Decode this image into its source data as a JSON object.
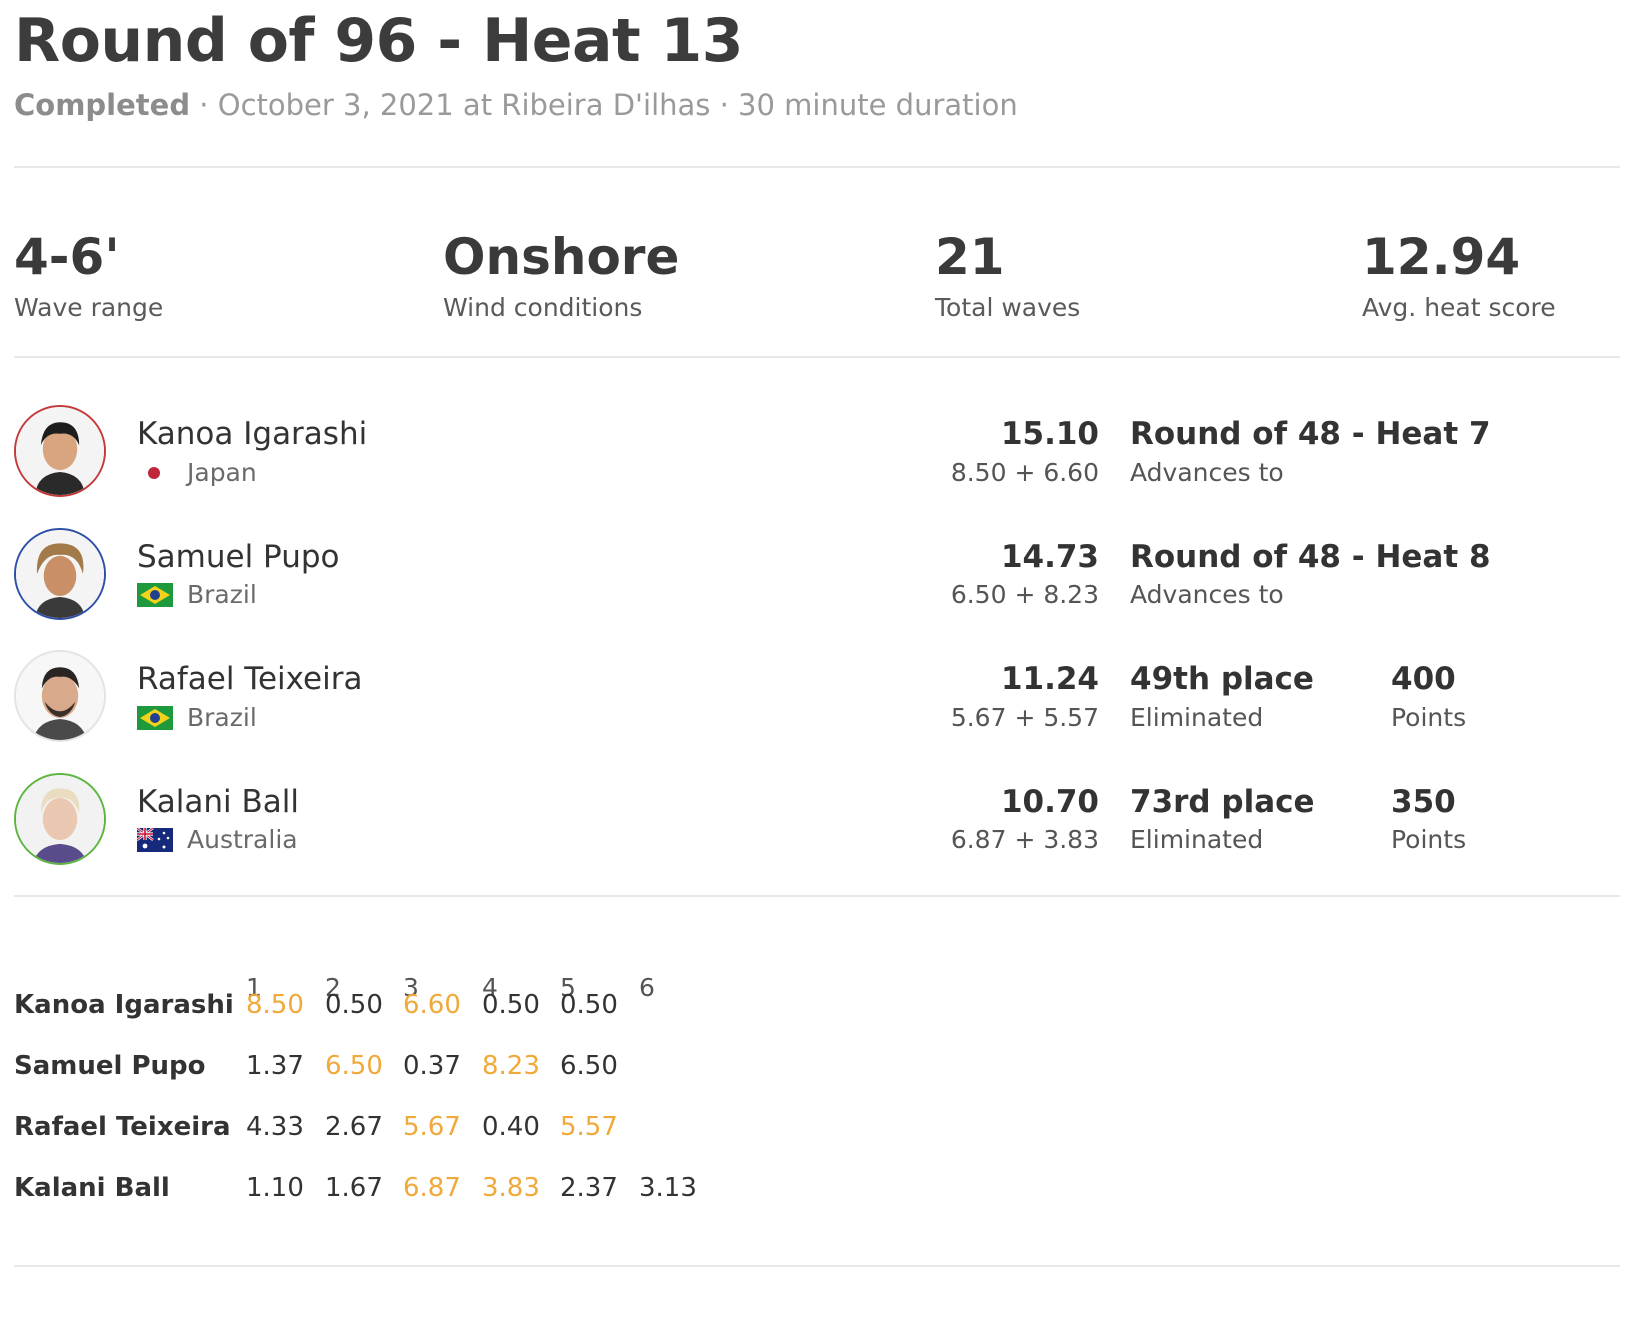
{
  "header": {
    "title": "Round of 96 - Heat 13",
    "status": "Completed",
    "details": " · October 3, 2021 at Ribeira D'ilhas · 30 minute duration"
  },
  "stats": [
    {
      "value": "4-6'",
      "label": "Wave range"
    },
    {
      "value": "Onshore",
      "label": "Wind conditions"
    },
    {
      "value": "21",
      "label": "Total waves"
    },
    {
      "value": "12.94",
      "label": "Avg. heat score"
    }
  ],
  "surfers": [
    {
      "name": "Kanoa Igarashi",
      "country": "Japan",
      "flag_icon": "japan-flag-icon",
      "ring_color": "#c43a3a",
      "total": "15.10",
      "waves": "8.50 + 6.60",
      "result": "Round of 48 - Heat 7",
      "result_sub": "Advances to",
      "points": "",
      "points_label": ""
    },
    {
      "name": "Samuel Pupo",
      "country": "Brazil",
      "flag_icon": "brazil-flag-icon",
      "ring_color": "#2d4fa8",
      "total": "14.73",
      "waves": "6.50 + 8.23",
      "result": "Round of 48 - Heat 8",
      "result_sub": "Advances to",
      "points": "",
      "points_label": ""
    },
    {
      "name": "Rafael Teixeira",
      "country": "Brazil",
      "flag_icon": "brazil-flag-icon",
      "ring_color": "#e4e4e4",
      "total": "11.24",
      "waves": "5.67 + 5.57",
      "result": "49th place",
      "result_sub": "Eliminated",
      "points": "400",
      "points_label": "Points"
    },
    {
      "name": "Kalani Ball",
      "country": "Australia",
      "flag_icon": "australia-flag-icon",
      "ring_color": "#5bb53f",
      "total": "10.70",
      "waves": "6.87 + 3.83",
      "result": "73rd place",
      "result_sub": "Eliminated",
      "points": "350",
      "points_label": "Points"
    }
  ],
  "wave_table": {
    "columns": [
      "1",
      "2",
      "3",
      "4",
      "5",
      "6"
    ],
    "highlight_color": "#f0a93b",
    "rows": [
      {
        "name": "Kanoa Igarashi",
        "scores": [
          "8.50",
          "0.50",
          "6.60",
          "0.50",
          "0.50"
        ],
        "counted": [
          0,
          2
        ]
      },
      {
        "name": "Samuel Pupo",
        "scores": [
          "1.37",
          "6.50",
          "0.37",
          "8.23",
          "6.50"
        ],
        "counted": [
          1,
          3
        ]
      },
      {
        "name": "Rafael Teixeira",
        "scores": [
          "4.33",
          "2.67",
          "5.67",
          "0.40",
          "5.57"
        ],
        "counted": [
          2,
          4
        ]
      },
      {
        "name": "Kalani Ball",
        "scores": [
          "1.10",
          "1.67",
          "6.87",
          "3.83",
          "2.37",
          "3.13"
        ],
        "counted": [
          2,
          3
        ]
      }
    ]
  }
}
